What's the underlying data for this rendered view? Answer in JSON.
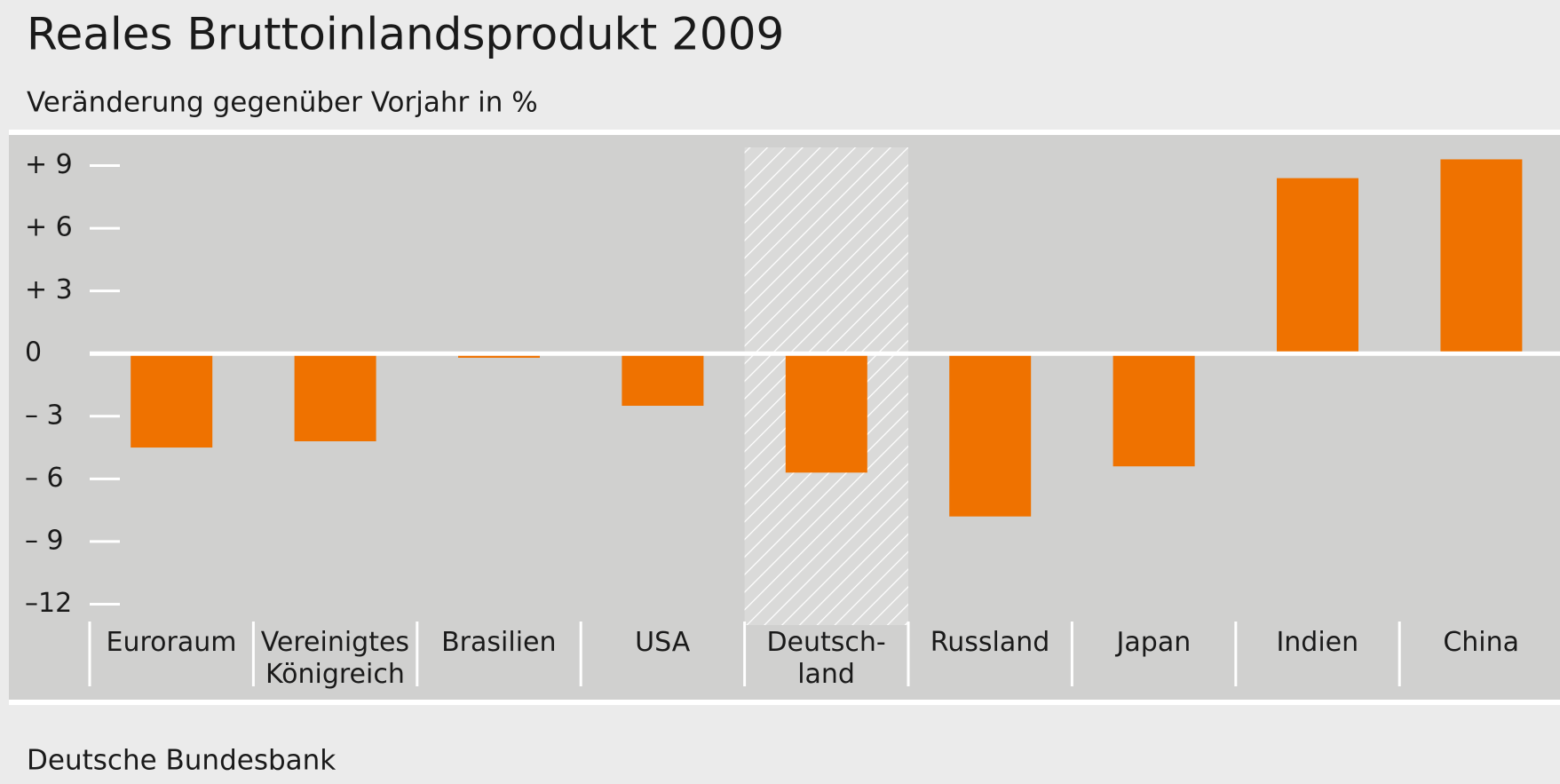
{
  "chart_data": {
    "type": "bar",
    "title": "Reales Bruttoinlandsprodukt 2009",
    "subtitle": "Veränderung gegenüber Vorjahr in %",
    "source": "Deutsche Bundesbank",
    "categories": [
      "Euroraum",
      "Vereinigtes\nKönigreich",
      "Brasilien",
      "USA",
      "Deutsch-\nland",
      "Russland",
      "Japan",
      "Indien",
      "China"
    ],
    "values": [
      -4.5,
      -4.2,
      -0.2,
      -2.5,
      -5.7,
      -7.8,
      -5.4,
      8.4,
      9.3
    ],
    "color": "#ef7200",
    "highlight": "Deutsch-\nland",
    "ylim": [
      -13,
      10
    ],
    "yticks": [
      {
        "value": 9,
        "label": "+ 9"
      },
      {
        "value": 6,
        "label": "+ 6"
      },
      {
        "value": 3,
        "label": "+ 3"
      },
      0,
      {
        "value": -3,
        "label": "– 3"
      },
      {
        "value": -6,
        "label": "– 6"
      },
      {
        "value": -9,
        "label": "– 9"
      },
      {
        "value": -12,
        "label": "–12"
      }
    ]
  }
}
